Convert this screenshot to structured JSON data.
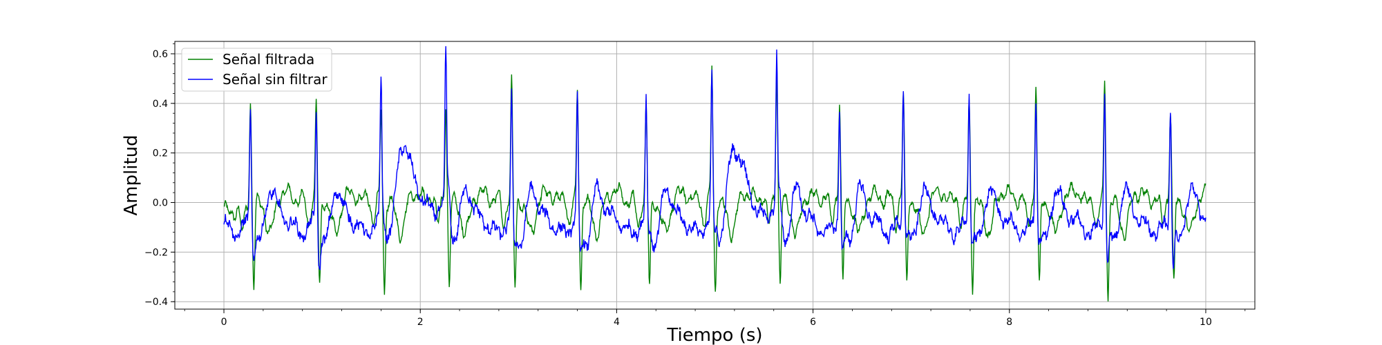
{
  "chart_data": {
    "type": "line",
    "title": "",
    "xlabel": "Tiempo (s)",
    "ylabel": "Amplitud",
    "xlim": [
      -0.5,
      10.5
    ],
    "ylim": [
      -0.43,
      0.65
    ],
    "xticks": [
      0,
      2,
      4,
      6,
      8,
      10
    ],
    "xtick_labels": [
      "0",
      "2",
      "4",
      "6",
      "8",
      "10"
    ],
    "yticks": [
      -0.4,
      -0.2,
      0.0,
      0.2,
      0.4,
      0.6
    ],
    "ytick_labels": [
      "−0.4",
      "−0.2",
      "0.0",
      "0.2",
      "0.4",
      "0.6"
    ],
    "grid": true,
    "legend_position": "top-left",
    "duration": 10,
    "beats": [
      {
        "t": 0.27,
        "filtered_peak": 0.41,
        "filtered_trough": -0.33,
        "raw_peak": 0.43,
        "raw_trough": -0.21
      },
      {
        "t": 0.94,
        "filtered_peak": 0.39,
        "filtered_trough": -0.35,
        "raw_peak": 0.41,
        "raw_trough": -0.25
      },
      {
        "t": 1.6,
        "filtered_peak": 0.36,
        "filtered_trough": -0.37,
        "raw_peak": 0.55,
        "raw_trough": -0.07
      },
      {
        "t": 2.26,
        "filtered_peak": 0.4,
        "filtered_trough": -0.35,
        "raw_peak": 0.6,
        "raw_trough": 0.02
      },
      {
        "t": 2.93,
        "filtered_peak": 0.47,
        "filtered_trough": -0.36,
        "raw_peak": 0.47,
        "raw_trough": -0.18
      },
      {
        "t": 3.6,
        "filtered_peak": 0.45,
        "filtered_trough": -0.35,
        "raw_peak": 0.46,
        "raw_trough": -0.22
      },
      {
        "t": 4.3,
        "filtered_peak": 0.38,
        "filtered_trough": -0.35,
        "raw_peak": 0.43,
        "raw_trough": -0.1
      },
      {
        "t": 4.97,
        "filtered_peak": 0.54,
        "filtered_trough": -0.37,
        "raw_peak": 0.54,
        "raw_trough": -0.12
      },
      {
        "t": 5.63,
        "filtered_peak": 0.52,
        "filtered_trough": -0.33,
        "raw_peak": 0.55,
        "raw_trough": 0.0
      },
      {
        "t": 6.27,
        "filtered_peak": 0.4,
        "filtered_trough": -0.34,
        "raw_peak": 0.43,
        "raw_trough": -0.22
      },
      {
        "t": 6.92,
        "filtered_peak": 0.43,
        "filtered_trough": -0.35,
        "raw_peak": 0.5,
        "raw_trough": -0.12
      },
      {
        "t": 7.59,
        "filtered_peak": 0.4,
        "filtered_trough": -0.34,
        "raw_peak": 0.49,
        "raw_trough": -0.15
      },
      {
        "t": 8.27,
        "filtered_peak": 0.48,
        "filtered_trough": -0.35,
        "raw_peak": 0.48,
        "raw_trough": -0.15
      },
      {
        "t": 8.97,
        "filtered_peak": 0.49,
        "filtered_trough": -0.38,
        "raw_peak": 0.49,
        "raw_trough": -0.23
      },
      {
        "t": 9.64,
        "filtered_peak": 0.38,
        "filtered_trough": -0.34,
        "raw_peak": 0.43,
        "raw_trough": -0.24
      }
    ],
    "series": [
      {
        "name": "Señal filtrada",
        "color": "#008000",
        "start_value": -0.03,
        "end_value": 0.01
      },
      {
        "name": "Señal sin filtrar",
        "color": "#0000ff",
        "start_value": -0.07,
        "end_value": -0.09
      }
    ]
  }
}
